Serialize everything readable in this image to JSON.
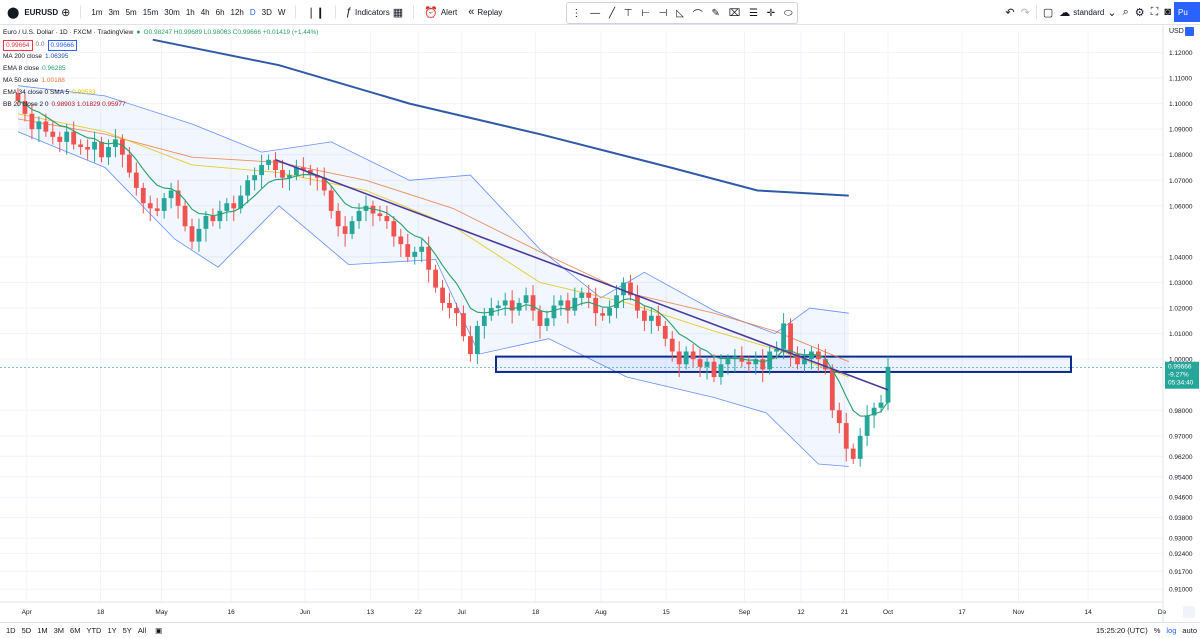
{
  "toolbar": {
    "symbol": "EURUSD",
    "intervals": [
      "1m",
      "3m",
      "5m",
      "15m",
      "30m",
      "1h",
      "4h",
      "6h",
      "12h",
      "D",
      "3D",
      "W"
    ],
    "active_interval": "D",
    "indicators_label": "Indicators",
    "alert_label": "Alert",
    "replay_label": "Replay",
    "layout_label": "standard",
    "publish_label": "Pu"
  },
  "legend": {
    "title": "Euro / U.S. Dollar · 1D · FXCM · TradingView",
    "ohlc": "O0.98247 H0.99689 L0.98063 C0.99666 +0.01419 (+1.44%)",
    "bid": "0.99664",
    "spread": "0.0",
    "ask": "0.99666",
    "indicators": [
      {
        "label": "MA 200 close",
        "value": "1.06395",
        "color": "#1e4fb4"
      },
      {
        "label": "EMA 8 close",
        "value": "0.96285",
        "color": "#26a269"
      },
      {
        "label": "MA 50 close",
        "value": "1.00188",
        "color": "#e8763a"
      },
      {
        "label": "EMA 34 close 0 SMA 5",
        "value": "0.99533",
        "color": "#e5c100"
      },
      {
        "label": "BB 20 close 2 0",
        "value": "0.98903 1.01829 0.95977",
        "color": "#b71c1c"
      }
    ]
  },
  "price_axis": {
    "currency": "USD",
    "current_price": "0.99666",
    "current_change": "-9.27%",
    "countdown": "05:34:40"
  },
  "time_axis": [
    "Apr",
    "18",
    "May",
    "16",
    "Jun",
    "13",
    "22",
    "Jul",
    "18",
    "Aug",
    "15",
    "Sep",
    "12",
    "21",
    "Oct",
    "17",
    "Nov",
    "14",
    "De"
  ],
  "bottom": {
    "ranges": [
      "1D",
      "5D",
      "1M",
      "3M",
      "6M",
      "YTD",
      "1Y",
      "5Y",
      "All"
    ],
    "clock": "15:25:20 (UTC)",
    "percent_label": "%",
    "log_label": "log",
    "auto_label": "auto"
  },
  "chart_data": {
    "type": "candlestick",
    "symbol": "EURUSD",
    "timeframe": "1D",
    "y_ticks": [
      1.12,
      1.11,
      1.1,
      1.09,
      1.08,
      1.07,
      1.06,
      1.04,
      1.03,
      1.02,
      1.01,
      1.0,
      0.98,
      0.97,
      0.962,
      0.954,
      0.946,
      0.938,
      0.93,
      0.924,
      0.917,
      0.91
    ],
    "y_tick_labels": [
      "1.12000",
      "1.11000",
      "1.10000",
      "1.09000",
      "1.08000",
      "1.07000",
      "1.06000",
      "1.04000",
      "1.03000",
      "1.02000",
      "1.01000",
      "1.00000",
      "0.98000",
      "0.97000",
      "0.96200",
      "0.95400",
      "0.94600",
      "0.93800",
      "0.93000",
      "0.92400",
      "0.91700",
      "0.91000"
    ],
    "closes": [
      1.101,
      1.096,
      1.09,
      1.093,
      1.089,
      1.087,
      1.085,
      1.089,
      1.084,
      1.083,
      1.082,
      1.085,
      1.079,
      1.083,
      1.086,
      1.08,
      1.073,
      1.067,
      1.061,
      1.059,
      1.058,
      1.063,
      1.066,
      1.06,
      1.052,
      1.046,
      1.051,
      1.056,
      1.054,
      1.058,
      1.061,
      1.059,
      1.064,
      1.07,
      1.072,
      1.076,
      1.078,
      1.074,
      1.071,
      1.072,
      1.075,
      1.074,
      1.072,
      1.071,
      1.066,
      1.058,
      1.052,
      1.049,
      1.054,
      1.058,
      1.06,
      1.057,
      1.056,
      1.054,
      1.048,
      1.045,
      1.04,
      1.042,
      1.044,
      1.035,
      1.028,
      1.022,
      1.02,
      1.018,
      1.009,
      1.002,
      1.013,
      1.017,
      1.02,
      1.021,
      1.023,
      1.019,
      1.022,
      1.025,
      1.019,
      1.013,
      1.016,
      1.021,
      1.023,
      1.019,
      1.024,
      1.026,
      1.024,
      1.018,
      1.017,
      1.02,
      1.025,
      1.03,
      1.025,
      1.019,
      1.015,
      1.017,
      1.013,
      1.008,
      1.003,
      0.998,
      1.003,
      1.0,
      0.997,
      0.999,
      0.993,
      0.998,
      1.0,
      1.001,
      0.999,
      0.998,
      1.0,
      0.996,
      1.003,
      1.004,
      1.014,
      1.002,
      0.998,
      1.0,
      1.003,
      1.0,
      0.996,
      0.98,
      0.975,
      0.965,
      0.961,
      0.97,
      0.978,
      0.981,
      0.983,
      0.997
    ],
    "ma200": [
      [
        0.155,
        1.125
      ],
      [
        0.3,
        1.115
      ],
      [
        0.45,
        1.1
      ],
      [
        0.6,
        1.088
      ],
      [
        0.75,
        1.075
      ],
      [
        0.85,
        1.066
      ],
      [
        0.955,
        1.064
      ]
    ],
    "ma50": [
      [
        0.0,
        1.094
      ],
      [
        0.1,
        1.088
      ],
      [
        0.2,
        1.079
      ],
      [
        0.3,
        1.077
      ],
      [
        0.4,
        1.07
      ],
      [
        0.5,
        1.059
      ],
      [
        0.6,
        1.042
      ],
      [
        0.7,
        1.026
      ],
      [
        0.8,
        1.018
      ],
      [
        0.87,
        1.011
      ],
      [
        0.955,
        0.999
      ]
    ],
    "ema34": [
      [
        0.0,
        1.096
      ],
      [
        0.1,
        1.089
      ],
      [
        0.2,
        1.076
      ],
      [
        0.3,
        1.073
      ],
      [
        0.4,
        1.066
      ],
      [
        0.5,
        1.052
      ],
      [
        0.6,
        1.03
      ],
      [
        0.7,
        1.022
      ],
      [
        0.8,
        1.011
      ],
      [
        0.87,
        1.004
      ],
      [
        0.955,
        0.993
      ]
    ],
    "bb_upper": [
      [
        0.0,
        1.107
      ],
      [
        0.1,
        1.103
      ],
      [
        0.2,
        1.092
      ],
      [
        0.28,
        1.081
      ],
      [
        0.36,
        1.085
      ],
      [
        0.45,
        1.07
      ],
      [
        0.52,
        1.072
      ],
      [
        0.6,
        1.043
      ],
      [
        0.67,
        1.024
      ],
      [
        0.72,
        1.034
      ],
      [
        0.8,
        1.019
      ],
      [
        0.87,
        1.01
      ],
      [
        0.91,
        1.02
      ],
      [
        0.955,
        1.018
      ]
    ],
    "bb_lower": [
      [
        0.0,
        1.089
      ],
      [
        0.1,
        1.075
      ],
      [
        0.18,
        1.047
      ],
      [
        0.23,
        1.036
      ],
      [
        0.3,
        1.06
      ],
      [
        0.38,
        1.037
      ],
      [
        0.48,
        1.039
      ],
      [
        0.53,
        1.002
      ],
      [
        0.61,
        1.008
      ],
      [
        0.7,
        0.993
      ],
      [
        0.8,
        0.985
      ],
      [
        0.86,
        0.979
      ],
      [
        0.92,
        0.959
      ],
      [
        0.955,
        0.958
      ]
    ],
    "trendline": [
      [
        0.296,
        1.078
      ],
      [
        1.0,
        0.988
      ]
    ],
    "support_zone": [
      0.995,
      1.001
    ],
    "ylim": [
      0.905,
      1.128
    ],
    "grid": true
  }
}
